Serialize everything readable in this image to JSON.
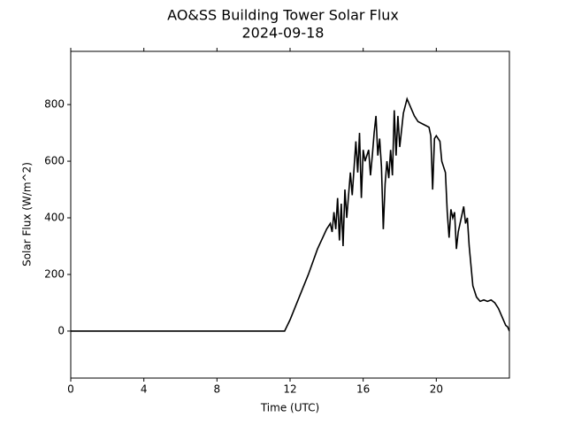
{
  "chart_data": {
    "type": "line",
    "title": "AO&SS Building Tower Solar Flux",
    "subtitle": "2024-09-18",
    "x_label": "Time (UTC)",
    "y_label": "Solar Flux (W/m^2)",
    "color": "#000000",
    "xlim": [
      0,
      24
    ],
    "ylim": [
      -166,
      988
    ],
    "xticks": [
      0,
      4,
      8,
      12,
      16,
      20
    ],
    "yticks": [
      0,
      200,
      400,
      600,
      800
    ],
    "x": [
      0,
      11.7,
      12.0,
      12.5,
      13.0,
      13.5,
      14.0,
      14.2,
      14.3,
      14.4,
      14.5,
      14.6,
      14.7,
      14.8,
      14.9,
      15.0,
      15.1,
      15.3,
      15.4,
      15.6,
      15.7,
      15.8,
      15.9,
      16.0,
      16.1,
      16.3,
      16.4,
      16.5,
      16.6,
      16.7,
      16.8,
      16.9,
      17.0,
      17.1,
      17.2,
      17.3,
      17.4,
      17.5,
      17.6,
      17.7,
      17.8,
      17.9,
      18.0,
      18.2,
      18.4,
      18.6,
      18.8,
      19.0,
      19.3,
      19.6,
      19.7,
      19.8,
      19.9,
      20.0,
      20.2,
      20.3,
      20.5,
      20.6,
      20.7,
      20.8,
      20.9,
      21.0,
      21.1,
      21.2,
      21.3,
      21.5,
      21.6,
      21.7,
      21.8,
      22.0,
      22.2,
      22.4,
      22.6,
      22.8,
      23.0,
      23.2,
      23.4,
      23.6,
      23.8,
      23.9,
      24.0
    ],
    "values": [
      0,
      0,
      40,
      120,
      200,
      290,
      360,
      380,
      350,
      420,
      360,
      470,
      320,
      450,
      300,
      500,
      400,
      560,
      480,
      670,
      560,
      700,
      470,
      640,
      600,
      640,
      550,
      620,
      700,
      760,
      620,
      680,
      580,
      360,
      520,
      600,
      540,
      640,
      550,
      780,
      620,
      760,
      650,
      770,
      820,
      790,
      760,
      740,
      730,
      720,
      690,
      500,
      680,
      690,
      670,
      600,
      560,
      420,
      330,
      430,
      400,
      420,
      290,
      350,
      380,
      440,
      380,
      400,
      300,
      160,
      120,
      105,
      110,
      105,
      110,
      100,
      80,
      50,
      20,
      15,
      0
    ]
  }
}
